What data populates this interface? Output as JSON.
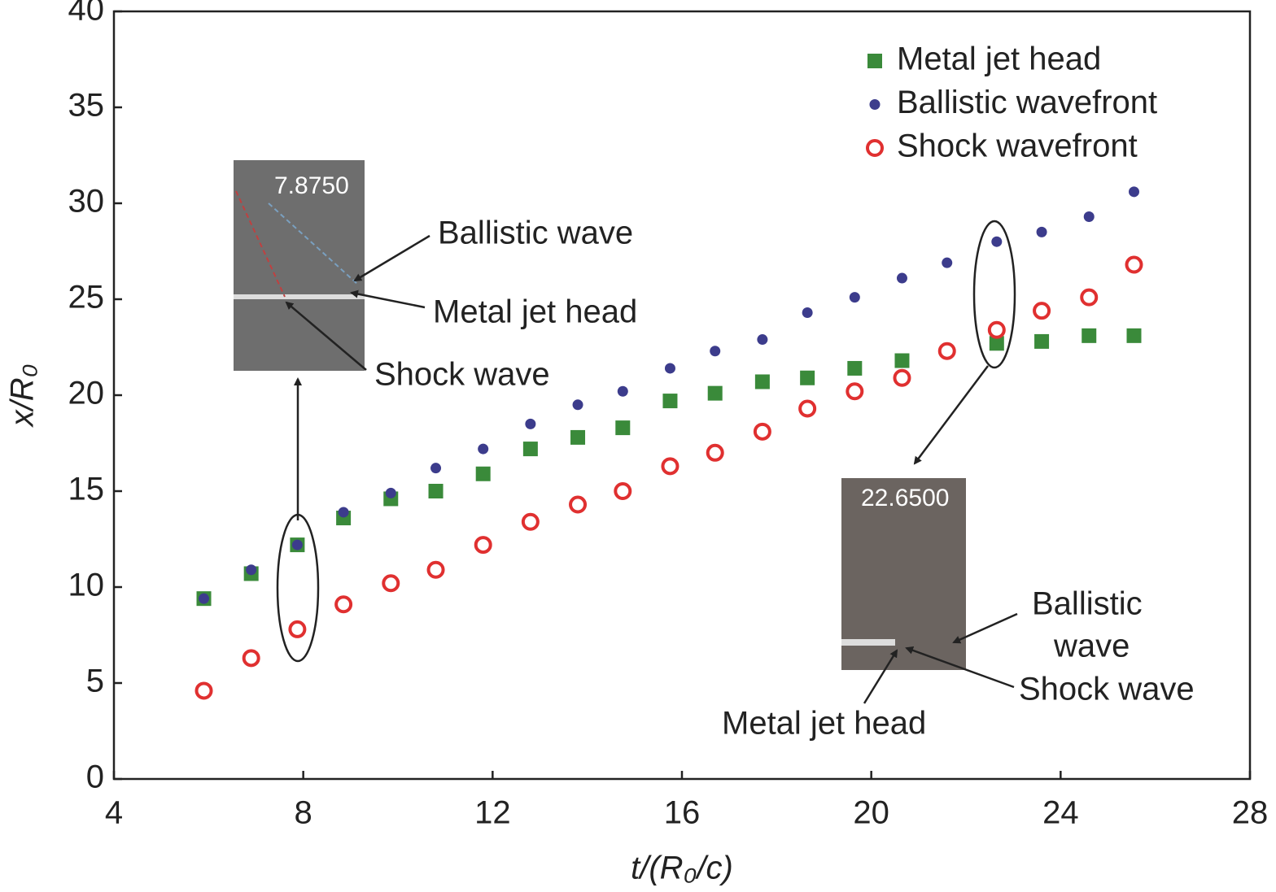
{
  "chart_data": {
    "type": "scatter",
    "xlabel": "t/(R₀/c)",
    "ylabel": "x/R₀",
    "xlim": [
      4,
      28
    ],
    "xticks": [
      4,
      8,
      12,
      16,
      20,
      24,
      28
    ],
    "ylim": [
      0,
      40
    ],
    "yticks": [
      0,
      5,
      10,
      15,
      20,
      25,
      30,
      35,
      40
    ],
    "legend": "upper right",
    "x": [
      5.9,
      6.9,
      7.875,
      8.85,
      9.85,
      10.8,
      11.8,
      12.8,
      13.8,
      14.75,
      15.75,
      16.7,
      17.7,
      18.65,
      19.65,
      20.65,
      21.6,
      22.65,
      23.6,
      24.6,
      25.55
    ],
    "series": [
      {
        "name": "Metal jet head",
        "color": "#3a8a3a",
        "marker": "square",
        "values": [
          9.4,
          10.7,
          12.2,
          13.6,
          14.6,
          15.0,
          15.9,
          17.2,
          17.8,
          18.3,
          19.7,
          20.1,
          20.7,
          20.9,
          21.4,
          21.8,
          null,
          22.7,
          22.8,
          23.1,
          23.1
        ]
      },
      {
        "name": "Ballistic wavefront",
        "color": "#3c3c8c",
        "marker": "dot",
        "values": [
          9.4,
          10.9,
          12.2,
          13.9,
          14.9,
          16.2,
          17.2,
          18.5,
          19.5,
          20.2,
          21.4,
          22.3,
          22.9,
          24.3,
          25.1,
          26.1,
          26.9,
          28.0,
          28.5,
          29.3,
          30.6
        ]
      },
      {
        "name": "Shock wavefront",
        "color": "#e03030",
        "marker": "circle-open",
        "values": [
          4.6,
          6.3,
          7.8,
          9.1,
          10.2,
          10.9,
          12.2,
          13.4,
          14.3,
          15.0,
          16.3,
          17.0,
          18.1,
          19.3,
          20.2,
          20.9,
          22.3,
          23.4,
          24.4,
          25.1,
          26.8
        ]
      }
    ],
    "annotations": [
      "7.8750",
      "Ballistic wave",
      "Metal jet head",
      "Shock wave",
      "22.6500",
      "Ballistic",
      "wave",
      "Shock wave",
      "Metal jet head"
    ]
  }
}
